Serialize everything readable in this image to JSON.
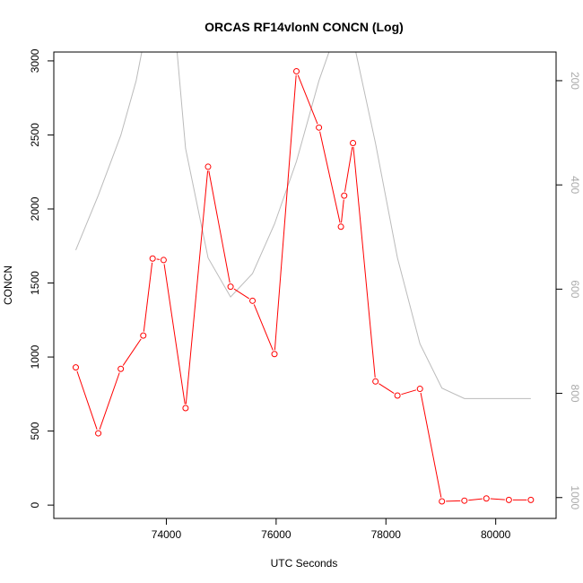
{
  "chart_data": {
    "type": "line",
    "title": "ORCAS RF14vlonN CONCN (Log)",
    "xlabel": "UTC Seconds",
    "ylabel": "CONCN",
    "xlim": [
      71950,
      81100
    ],
    "ylim": [
      -90,
      3060
    ],
    "y2lim": [
      1040,
      145
    ],
    "x_ticks": [
      74000,
      76000,
      78000,
      80000
    ],
    "y_ticks": [
      0,
      500,
      1000,
      1500,
      2000,
      2500,
      3000
    ],
    "y2_ticks": [
      200,
      400,
      600,
      800,
      1000
    ],
    "grid": false,
    "series": [
      {
        "axis": "left",
        "color": "#ff0000",
        "marker": "open-circle",
        "x": [
          72350,
          72760,
          73170,
          73580,
          73750,
          73950,
          74350,
          74760,
          75170,
          75570,
          75970,
          76370,
          76780,
          77180,
          77240,
          77400,
          77810,
          78210,
          78620,
          79020,
          79430,
          79830,
          80240,
          80640
        ],
        "y": [
          930,
          485,
          920,
          1145,
          1665,
          1655,
          655,
          2285,
          1475,
          1380,
          1020,
          2930,
          2550,
          1880,
          2090,
          2445,
          835,
          740,
          785,
          25,
          30,
          45,
          35,
          35
        ]
      },
      {
        "axis": "right",
        "color": "#bbbbbb",
        "marker": "none",
        "x": [
          72350,
          72760,
          73170,
          73450,
          73580,
          73750,
          74100,
          74350,
          74760,
          75170,
          75570,
          75970,
          76370,
          76780,
          77180,
          77400,
          77810,
          78210,
          78620,
          79020,
          79430,
          79830,
          80240,
          80640
        ],
        "y": [
          525,
          420,
          305,
          200,
          130,
          40,
          30,
          330,
          540,
          615,
          570,
          475,
          355,
          200,
          80,
          120,
          320,
          540,
          705,
          790,
          810,
          810,
          810,
          810
        ]
      }
    ]
  }
}
